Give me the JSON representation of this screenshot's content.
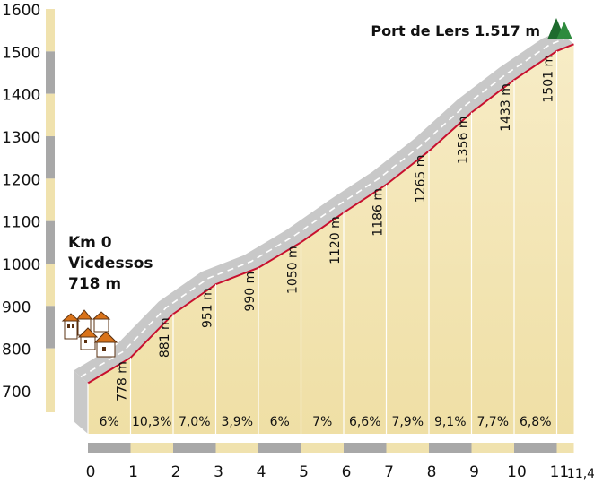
{
  "chart_data": {
    "type": "area",
    "title": "",
    "xlabel": "",
    "ylabel": "",
    "xlim": [
      0,
      11.4
    ],
    "ylim": [
      700,
      1600
    ],
    "y_ticks": [
      "700",
      "800",
      "900",
      "1000",
      "1100",
      "1200",
      "1300",
      "1400",
      "1500",
      "1600"
    ],
    "x_ticks": [
      "0",
      "1",
      "2",
      "3",
      "4",
      "5",
      "6",
      "7",
      "8",
      "9",
      "10",
      "11",
      "11,4"
    ],
    "x_tick_values": [
      0,
      1,
      2,
      3,
      4,
      5,
      6,
      7,
      8,
      9,
      10,
      11,
      11.4
    ],
    "x": [
      0,
      1,
      2,
      3,
      4,
      5,
      6,
      7,
      8,
      9,
      10,
      11,
      11.4
    ],
    "elevation": [
      718,
      778,
      881,
      951,
      990,
      1050,
      1120,
      1186,
      1265,
      1356,
      1433,
      1501,
      1517
    ],
    "km_markers": [
      {
        "km": 1,
        "label": "778 m"
      },
      {
        "km": 2,
        "label": "881 m"
      },
      {
        "km": 3,
        "label": "951 m"
      },
      {
        "km": 4,
        "label": "990 m"
      },
      {
        "km": 5,
        "label": "1050 m"
      },
      {
        "km": 6,
        "label": "1120 m"
      },
      {
        "km": 7,
        "label": "1186 m"
      },
      {
        "km": 8,
        "label": "1265 m"
      },
      {
        "km": 9,
        "label": "1356 m"
      },
      {
        "km": 10,
        "label": "1433 m"
      },
      {
        "km": 11,
        "label": "1501 m"
      }
    ],
    "gradients": [
      "6%",
      "10,3%",
      "7,0%",
      "3,9%",
      "6%",
      "7%",
      "6,6%",
      "7,9%",
      "9,1%",
      "7,7%",
      "6,8%"
    ],
    "start": {
      "km_label": "Km 0",
      "place": "Vicdessos",
      "elevation_label": "718 m"
    },
    "summit": {
      "label": "Port de Lers 1.517 m"
    },
    "colors": {
      "area_fill": "#f4e7b8",
      "profile_line": "#c8102e",
      "road_band": "#c8c8c8",
      "axis_band_light": "#f0e2ae",
      "axis_band_dark": "#a8a8a8",
      "summit_icon": "#1e6b2e"
    },
    "icons": {
      "start": "village-icon",
      "summit": "mountain-peaks-icon"
    },
    "grid": false,
    "legend": "none"
  }
}
